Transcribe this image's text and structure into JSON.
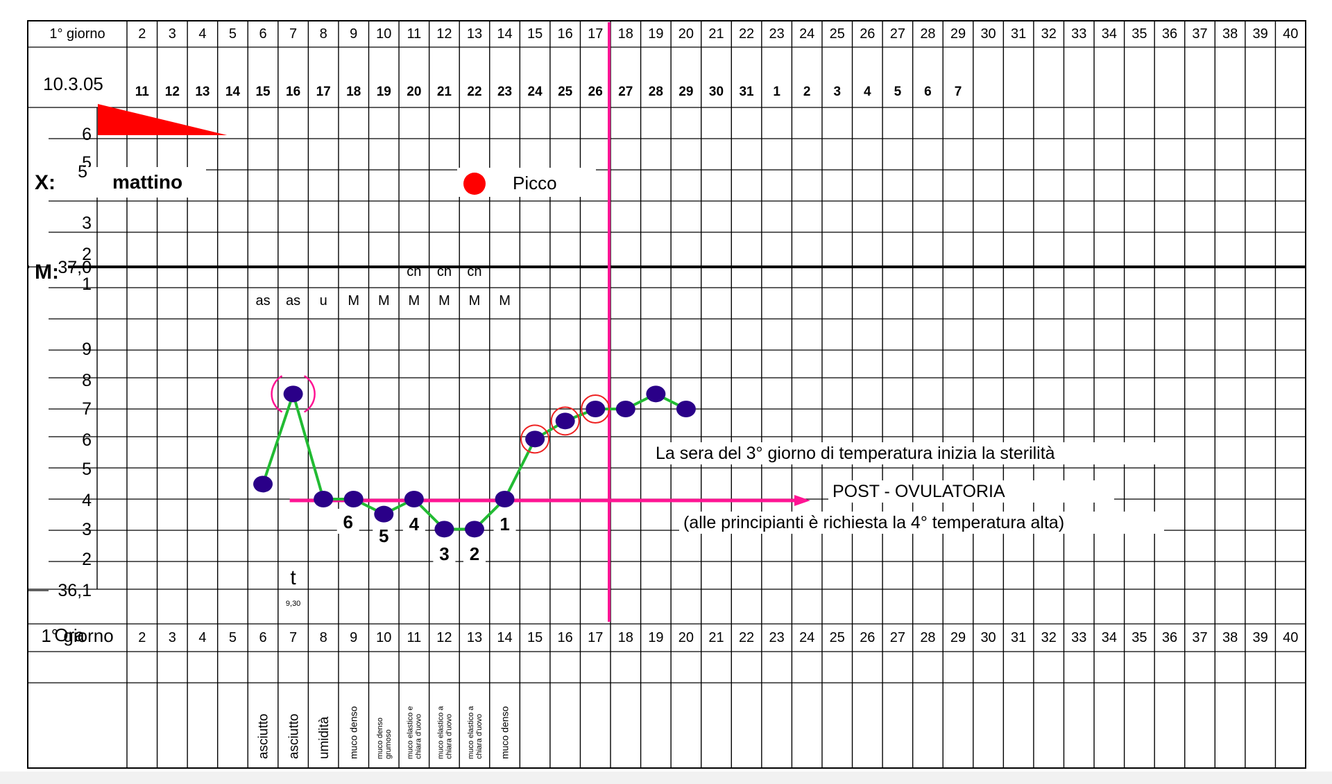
{
  "chart_data": {
    "type": "line",
    "title": "",
    "first_day_label": "1° giorno",
    "start_date": "10.3.05",
    "cycle_days": [
      1,
      2,
      3,
      4,
      5,
      6,
      7,
      8,
      9,
      10,
      11,
      12,
      13,
      14,
      15,
      16,
      17,
      18,
      19,
      20,
      21,
      22,
      23,
      24,
      25,
      26,
      27,
      28,
      29,
      30,
      31,
      32,
      33,
      34,
      35,
      36,
      37,
      38,
      39,
      40
    ],
    "day_numbers": [
      "11",
      "12",
      "13",
      "14",
      "15",
      "16",
      "17",
      "18",
      "19",
      "20",
      "21",
      "22",
      "23",
      "24",
      "25",
      "26",
      "27",
      "28",
      "29",
      "30",
      "31",
      "1",
      "2",
      "3",
      "4",
      "5",
      "6",
      "7"
    ],
    "mucus_scale_labels": [
      "6",
      "5",
      "4",
      "3",
      "2",
      "1"
    ],
    "x_label": "X:",
    "x_note": "mattino",
    "m_label": "M:",
    "peak_label": "Picco",
    "peak_day": 13,
    "ch_days": [
      11,
      12,
      13
    ],
    "ch_text": "ch",
    "mucus_codes": [
      {
        "day": 6,
        "code": "as"
      },
      {
        "day": 7,
        "code": "as"
      },
      {
        "day": 8,
        "code": "u"
      },
      {
        "day": 9,
        "code": "M"
      },
      {
        "day": 10,
        "code": "M"
      },
      {
        "day": 11,
        "code": "M"
      },
      {
        "day": 12,
        "code": "M"
      },
      {
        "day": 13,
        "code": "M"
      },
      {
        "day": 14,
        "code": "M"
      }
    ],
    "temp_axis_labels": [
      "37,0",
      "9",
      "8",
      "7",
      "6",
      "5",
      "4",
      "3",
      "2",
      "36,1"
    ],
    "ylim": [
      36.1,
      37.0
    ],
    "series": [
      {
        "x": [
          6,
          7,
          8,
          9,
          10,
          11,
          12,
          13,
          14,
          15,
          16,
          17,
          18,
          19,
          20
        ],
        "y": [
          36.45,
          36.75,
          36.4,
          36.4,
          36.35,
          36.4,
          36.3,
          36.3,
          36.4,
          36.6,
          36.66,
          36.7,
          36.7,
          36.75,
          36.7
        ]
      }
    ],
    "bracketed_day": 7,
    "circled_days": [
      15,
      16,
      17
    ],
    "coverline_value": 36.4,
    "low_count": [
      {
        "day": 9,
        "n": "6"
      },
      {
        "day": 10,
        "n": "5"
      },
      {
        "day": 11,
        "n": "4"
      },
      {
        "day": 12,
        "n": "3"
      },
      {
        "day": 13,
        "n": "2"
      },
      {
        "day": 14,
        "n": "1"
      }
    ],
    "vertical_marker_day": 17,
    "time_label": "t",
    "time_value": "9,30",
    "time_day": 7,
    "ora_label": "Ora",
    "annotation_lines": [
      "La sera del 3° giorno di temperatura inizia la sterilità",
      "POST - OVULATORIA",
      "(alle principianti è richiesta la 4° temperatura alta)"
    ],
    "observations": [
      {
        "day": 6,
        "lines": [
          "asciutto"
        ]
      },
      {
        "day": 7,
        "lines": [
          "asciutto"
        ]
      },
      {
        "day": 8,
        "lines": [
          "umidità"
        ]
      },
      {
        "day": 9,
        "lines": [
          "muco denso"
        ]
      },
      {
        "day": 10,
        "lines": [
          "muco denso",
          "grumoso"
        ]
      },
      {
        "day": 11,
        "lines": [
          "muco elastico e",
          "chiara d'uovo"
        ]
      },
      {
        "day": 12,
        "lines": [
          "muco elastico a",
          "chiara d'uovo"
        ]
      },
      {
        "day": 13,
        "lines": [
          "muco elastico a",
          "chiara d'uovo"
        ]
      },
      {
        "day": 14,
        "lines": [
          "muco denso"
        ]
      }
    ],
    "colors": {
      "grid": "#000000",
      "line": "#22bb33",
      "point": "#2a0088",
      "marker": "#ff1493",
      "circle": "#ee2222",
      "peak": "#ff0000",
      "red_triangle": "#ff0000"
    }
  }
}
